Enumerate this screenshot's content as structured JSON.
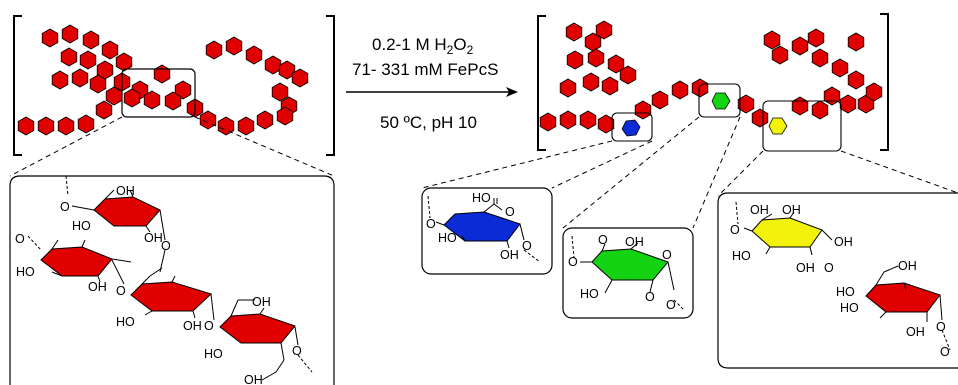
{
  "reaction": {
    "reagent_line1": "0.2-1 M H",
    "reagent_line1_sub1": "2",
    "reagent_line1_mid": "O",
    "reagent_line1_sub2": "2",
    "reagent_line2": "71- 331 mM FePcS",
    "condition": "50 ºC, pH 10"
  },
  "labels": {
    "oh": "OH",
    "ho": "HO",
    "o": "O"
  },
  "colors": {
    "glucose_unit": "#e00000",
    "unit_outline": "#000000",
    "oxidized_blue": "#0a2bd6",
    "oxidized_green": "#13d313",
    "oxidized_yellow": "#f2f20a"
  },
  "legend_icons": {
    "hexagon_unit": "hexagon-icon",
    "arrow": "reaction-arrow-icon"
  }
}
